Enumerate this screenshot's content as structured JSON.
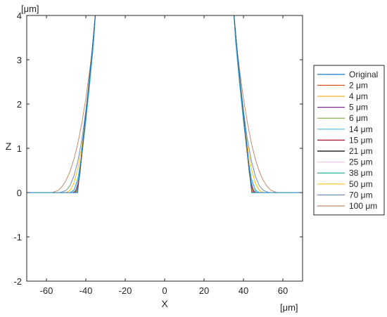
{
  "chart_data": {
    "type": "line",
    "title": "",
    "xlabel": "X",
    "ylabel": "Z",
    "x_unit": "[μm]",
    "y_unit": "[μm]",
    "xlim": [
      -70,
      70
    ],
    "ylim": [
      -2,
      4
    ],
    "xticks": [
      -60,
      -40,
      -20,
      0,
      20,
      40,
      60
    ],
    "yticks": [
      -2,
      -1,
      0,
      1,
      2,
      3,
      4
    ],
    "grid": false,
    "legend_position": "right",
    "series": [
      {
        "name": "Original",
        "color": "#0072bd",
        "x": [
          -70,
          -44.2,
          -44,
          -43,
          -41,
          -39,
          -37,
          -35.2,
          35.2,
          37,
          39,
          41,
          43,
          44,
          44.2,
          70
        ],
        "y": [
          0,
          0,
          0.1,
          0.52,
          1.35,
          2.2,
          3.1,
          4,
          4,
          3.1,
          2.2,
          1.35,
          0.52,
          0.1,
          0,
          0
        ]
      },
      {
        "name": "2 μm",
        "color": "#d95319",
        "x": [
          -70,
          -44.5,
          -44,
          -43,
          -41,
          -39,
          -37,
          -35.2,
          35.2,
          37,
          39,
          41,
          43,
          44,
          44.5,
          70
        ],
        "y": [
          0,
          0,
          0.08,
          0.5,
          1.34,
          2.2,
          3.1,
          4,
          4,
          3.1,
          2.2,
          1.34,
          0.5,
          0.08,
          0,
          0
        ]
      },
      {
        "name": "4 μm",
        "color": "#edb120",
        "x": [
          -70,
          -45,
          -44,
          -43,
          -41,
          -39,
          -37,
          -35.2,
          35.2,
          37,
          39,
          41,
          43,
          44,
          45,
          70
        ],
        "y": [
          0,
          0,
          0.12,
          0.47,
          1.32,
          2.18,
          3.1,
          4,
          4,
          3.1,
          2.18,
          1.32,
          0.47,
          0.12,
          0,
          0
        ]
      },
      {
        "name": "5 μm",
        "color": "#7e2f8e",
        "x": [
          -70,
          -45.5,
          -44,
          -43,
          -41,
          -39,
          -37,
          -35.2,
          35.2,
          37,
          39,
          41,
          43,
          44,
          45.5,
          70
        ],
        "y": [
          0,
          0,
          0.15,
          0.45,
          1.3,
          2.17,
          3.1,
          4,
          4,
          3.1,
          2.17,
          1.3,
          0.45,
          0.15,
          0,
          0
        ]
      },
      {
        "name": "6 μm",
        "color": "#77ac30",
        "x": [
          -70,
          -46,
          -44,
          -43,
          -41,
          -39,
          -37,
          -35.2,
          35.2,
          37,
          39,
          41,
          43,
          44,
          46,
          70
        ],
        "y": [
          0,
          0,
          0.14,
          0.42,
          1.27,
          2.15,
          3.08,
          4,
          4,
          3.08,
          2.15,
          1.27,
          0.42,
          0.14,
          0,
          0
        ]
      },
      {
        "name": "14 μm",
        "color": "#4dbeee",
        "x": [
          -70,
          -48,
          -46,
          -44,
          -42,
          -40,
          -38,
          -36,
          -35.2,
          35.2,
          36,
          38,
          40,
          42,
          44,
          46,
          48,
          70
        ],
        "y": [
          0,
          0,
          0.05,
          0.3,
          0.85,
          1.6,
          2.45,
          3.4,
          4,
          4,
          3.4,
          2.45,
          1.6,
          0.85,
          0.3,
          0.05,
          0,
          0
        ]
      },
      {
        "name": "15 μm",
        "color": "#a2142f",
        "x": [
          -70,
          -46.5,
          -45,
          -44,
          -43,
          -41,
          -39,
          -37,
          -35.2,
          35.2,
          37,
          39,
          41,
          43,
          44,
          45,
          46.5,
          70
        ],
        "y": [
          0,
          0,
          0.05,
          0.2,
          0.45,
          1.28,
          2.15,
          3.08,
          4,
          4,
          3.08,
          2.15,
          1.28,
          0.45,
          0.2,
          0.05,
          0,
          0
        ]
      },
      {
        "name": "21 μm",
        "color": "#000000",
        "x": [
          -70,
          -45,
          -44,
          -43,
          -41,
          -39,
          -37,
          -35.2,
          35.2,
          37,
          39,
          41,
          43,
          44,
          45,
          70
        ],
        "y": [
          0,
          0,
          0.15,
          0.5,
          1.33,
          2.2,
          3.1,
          4,
          4,
          3.1,
          2.2,
          1.33,
          0.5,
          0.15,
          0,
          0
        ]
      },
      {
        "name": "25 μm",
        "color": "#f4c7e4",
        "x": [
          -70,
          -47,
          -45,
          -43,
          -41,
          -39,
          -37,
          -35.2,
          35.2,
          37,
          39,
          41,
          43,
          45,
          47,
          70
        ],
        "y": [
          0,
          0,
          0.1,
          0.45,
          1.25,
          2.12,
          3.05,
          4,
          4,
          3.05,
          2.12,
          1.25,
          0.45,
          0.1,
          0,
          0
        ]
      },
      {
        "name": "38 μm",
        "color": "#13a89e",
        "x": [
          -70,
          -48,
          -46,
          -44,
          -42,
          -40,
          -38,
          -36,
          -35.2,
          35.2,
          36,
          38,
          40,
          42,
          44,
          46,
          48,
          70
        ],
        "y": [
          0,
          0,
          0.06,
          0.32,
          0.86,
          1.62,
          2.48,
          3.42,
          4,
          4,
          3.42,
          2.48,
          1.62,
          0.86,
          0.32,
          0.06,
          0,
          0
        ]
      },
      {
        "name": "50 μm",
        "color": "#ffc20e",
        "x": [
          -70,
          -50,
          -48,
          -46,
          -44,
          -42,
          -40,
          -38,
          -36,
          -35.2,
          35.2,
          36,
          38,
          40,
          42,
          44,
          46,
          48,
          50,
          70
        ],
        "y": [
          0,
          0,
          0.05,
          0.22,
          0.55,
          1.05,
          1.72,
          2.52,
          3.42,
          4,
          4,
          3.42,
          2.52,
          1.72,
          1.05,
          0.55,
          0.22,
          0.05,
          0,
          0
        ]
      },
      {
        "name": "70 μm",
        "color": "#6f8fb8",
        "x": [
          -70,
          -53,
          -50,
          -48,
          -46,
          -44,
          -42,
          -40,
          -38,
          -36,
          -35.2,
          35.2,
          36,
          38,
          40,
          42,
          44,
          46,
          48,
          50,
          53,
          70
        ],
        "y": [
          0,
          0,
          0.05,
          0.16,
          0.38,
          0.72,
          1.2,
          1.85,
          2.62,
          3.48,
          4,
          4,
          3.48,
          2.62,
          1.85,
          1.2,
          0.72,
          0.38,
          0.16,
          0.05,
          0,
          0
        ]
      },
      {
        "name": "100 μm",
        "color": "#c48a6a",
        "x": [
          -70,
          -57,
          -54,
          -52,
          -50,
          -48,
          -46,
          -44,
          -42,
          -40,
          -38,
          -36,
          -35.2,
          35.2,
          36,
          38,
          40,
          42,
          44,
          46,
          48,
          50,
          52,
          54,
          57,
          70
        ],
        "y": [
          0,
          0,
          0.05,
          0.14,
          0.28,
          0.48,
          0.76,
          1.12,
          1.58,
          2.12,
          2.78,
          3.52,
          4,
          4,
          3.52,
          2.78,
          2.12,
          1.58,
          1.12,
          0.76,
          0.48,
          0.28,
          0.14,
          0.05,
          0,
          0
        ]
      }
    ]
  }
}
